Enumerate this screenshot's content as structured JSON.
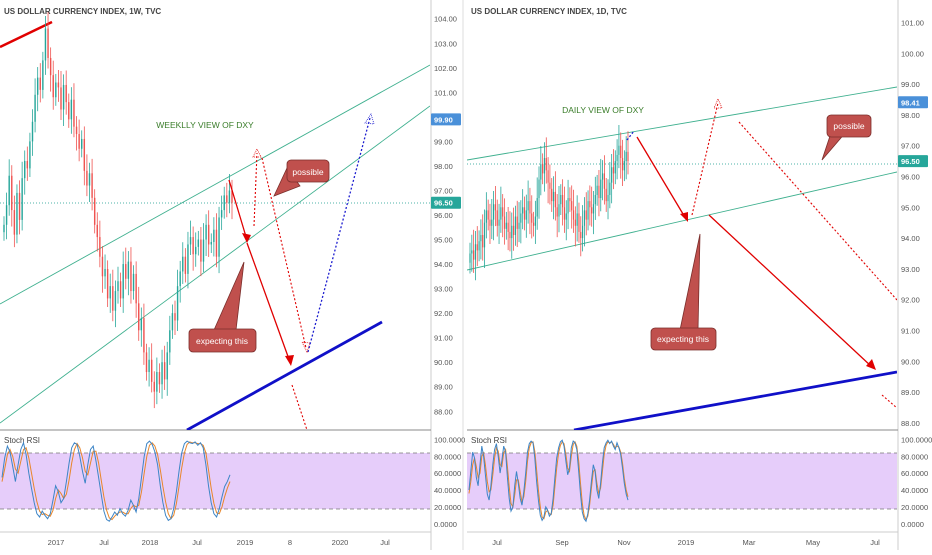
{
  "colors": {
    "up": "#26a69a",
    "down": "#ef5350",
    "channel": "#3fb08f",
    "baseline": "#4fb3a8",
    "arrow_red": "#e00000",
    "arrow_blue": "#1f1fd0",
    "support_blue": "#1010c8",
    "callout_fill": "#c0504d",
    "callout_stroke": "#7a2e2b",
    "stoch_band": "#e6cdfa",
    "stoch_k": "#3d85c6",
    "stoch_d": "#e8862a",
    "label_text": "#3a7d2a",
    "price_tag_bg": "#26a69a",
    "target_tag_bg": "#4a90d9",
    "axis_text": "#555555",
    "divider": "#888888"
  },
  "chart_data": [
    {
      "type": "candlestick",
      "title": "US DOLLAR CURRENCY INDEX, 1W, TVC",
      "annotation": "WEEKLLY VIEW OF DXY",
      "x_ticks": [
        "2017",
        "Jul",
        "2018",
        "Jul",
        "2019",
        "8",
        "2020",
        "Jul"
      ],
      "y_ticks": [
        "104.00",
        "103.00",
        "102.00",
        "101.00",
        "100.00",
        "99.00",
        "98.00",
        "97.00",
        "96.00",
        "95.00",
        "94.00",
        "93.00",
        "92.00",
        "91.00",
        "90.00",
        "89.00",
        "88.00"
      ],
      "ylim": [
        87.4,
        104.6
      ],
      "price_tags": [
        {
          "text": "99.90",
          "value": 99.9
        },
        {
          "text": "96.50",
          "value": 96.5
        }
      ],
      "current_price": 96.5,
      "closes": [
        95.6,
        96.4,
        97.6,
        96.2,
        95.2,
        96.9,
        95.8,
        97.5,
        98.2,
        97.9,
        99.0,
        99.8,
        100.9,
        101.6,
        101.1,
        102.3,
        103.6,
        102.4,
        101.7,
        100.8,
        101.4,
        101.2,
        100.3,
        101.3,
        100.6,
        99.9,
        100.7,
        99.6,
        99.3,
        98.7,
        99.1,
        97.8,
        97.2,
        97.7,
        96.7,
        95.6,
        95.1,
        94.3,
        93.5,
        93.8,
        92.6,
        93.1,
        92.1,
        92.9,
        93.3,
        92.6,
        94.0,
        93.4,
        94.1,
        92.9,
        93.6,
        92.4,
        91.3,
        91.8,
        90.4,
        89.6,
        90.1,
        89.2,
        88.8,
        89.6,
        89.1,
        90.0,
        89.3,
        90.4,
        91.3,
        92.0,
        91.7,
        93.1,
        93.7,
        94.3,
        93.6,
        94.8,
        95.1,
        94.4,
        94.7,
        95.0,
        94.1,
        95.0,
        95.6,
        94.8,
        94.9,
        95.4,
        94.3,
        95.9,
        96.2,
        96.8,
        96.5,
        97.0,
        96.5
      ]
    },
    {
      "type": "candlestick",
      "title": "US DOLLAR CURRENCY INDEX, 1D, TVC",
      "annotation": "DAILY VIEW OF DXY",
      "x_ticks": [
        "Jul",
        "Sep",
        "Nov",
        "2019",
        "Mar",
        "May",
        "Jul"
      ],
      "y_ticks": [
        "101.00",
        "100.00",
        "99.00",
        "98.00",
        "97.00",
        "96.00",
        "95.00",
        "94.00",
        "93.00",
        "92.00",
        "91.00",
        "90.00",
        "89.00",
        "88.00"
      ],
      "ylim": [
        87.9,
        101.6
      ],
      "price_tags": [
        {
          "text": "98.41",
          "value": 98.41
        },
        {
          "text": "96.50",
          "value": 96.5
        }
      ],
      "current_price": 96.5,
      "closes": [
        93.5,
        93.6,
        93.3,
        93.8,
        93.6,
        93.9,
        94.1,
        93.7,
        94.5,
        94.9,
        94.6,
        94.4,
        94.6,
        95.1,
        94.9,
        94.4,
        94.6,
        95.0,
        94.7,
        94.3,
        94.5,
        94.2,
        94.0,
        94.4,
        94.1,
        94.7,
        94.3,
        94.5,
        94.8,
        95.0,
        94.6,
        94.9,
        95.2,
        94.8,
        94.5,
        94.4,
        94.7,
        95.3,
        95.9,
        96.4,
        96.1,
        96.6,
        96.2,
        95.8,
        95.6,
        95.2,
        95.5,
        95.0,
        94.7,
        95.1,
        95.4,
        95.0,
        94.6,
        94.8,
        95.3,
        95.2,
        94.9,
        94.6,
        94.4,
        94.8,
        94.2,
        94.0,
        94.4,
        94.9,
        94.6,
        95.2,
        95.0,
        94.8,
        95.1,
        95.4,
        95.7,
        95.3,
        95.9,
        96.1,
        95.6,
        95.2,
        95.4,
        95.8,
        96.3,
        96.1,
        96.5,
        96.7,
        97.0,
        96.6,
        96.2,
        96.5,
        96.8,
        96.5
      ]
    },
    {
      "type": "line",
      "title": "Stoch RSI",
      "y_ticks": [
        "100.0000",
        "80.0000",
        "60.0000",
        "40.0000",
        "20.0000",
        "0.0000"
      ],
      "ylim": [
        -5,
        104
      ],
      "band": [
        20,
        80
      ],
      "series": [
        {
          "values": [
            55,
            78,
            92,
            85,
            68,
            50,
            70,
            88,
            96,
            82,
            60,
            42,
            25,
            12,
            8,
            15,
            10,
            6,
            12,
            28,
            45,
            38,
            25,
            30,
            50,
            72,
            90,
            96,
            94,
            80,
            62,
            48,
            70,
            88,
            92,
            75,
            55,
            35,
            15,
            5,
            3,
            8,
            14,
            10,
            18,
            12,
            9,
            16,
            28,
            22,
            14,
            30,
            55,
            80,
            95,
            98,
            94,
            85,
            70,
            45,
            25,
            10,
            4,
            6,
            18,
            38,
            62,
            84,
            95,
            98,
            96,
            95,
            97,
            93,
            96,
            90,
            70,
            45,
            25,
            12,
            8,
            18,
            32,
            44,
            50,
            58
          ]
        },
        {
          "values": [
            50,
            65,
            82,
            88,
            80,
            65,
            60,
            74,
            88,
            90,
            78,
            60,
            42,
            26,
            15,
            11,
            12,
            10,
            9,
            16,
            30,
            40,
            36,
            30,
            35,
            52,
            72,
            88,
            95,
            90,
            78,
            62,
            58,
            72,
            86,
            86,
            72,
            52,
            32,
            16,
            7,
            5,
            9,
            12,
            14,
            14,
            12,
            12,
            18,
            22,
            20,
            22,
            38,
            60,
            80,
            93,
            96,
            92,
            82,
            64,
            44,
            26,
            12,
            6,
            10,
            24,
            44,
            66,
            84,
            94,
            97,
            96,
            96,
            95,
            95,
            93,
            84,
            64,
            42,
            24,
            13,
            12,
            20,
            32,
            42,
            50
          ]
        },
        {
          "values": [
            40,
            62,
            85,
            78,
            55,
            45,
            70,
            92,
            80,
            58,
            35,
            28,
            45,
            70,
            88,
            95,
            80,
            60,
            75,
            92,
            85,
            55,
            30,
            15,
            20,
            45,
            62,
            48,
            30,
            22,
            38,
            60,
            85,
            95,
            98,
            96,
            78,
            50,
            28,
            10,
            4,
            8,
            20,
            16,
            9,
            12,
            30,
            55,
            78,
            90,
            97,
            99,
            92,
            74,
            58,
            66,
            90,
            98,
            96,
            88,
            62,
            35,
            14,
            6,
            3,
            12,
            28,
            50,
            70,
            62,
            40,
            30,
            48,
            72,
            90,
            96,
            99,
            95,
            98,
            92,
            88,
            96,
            90,
            82,
            66,
            48,
            35,
            28
          ]
        },
        {
          "values": [
            36,
            50,
            70,
            78,
            68,
            55,
            60,
            80,
            84,
            70,
            50,
            38,
            40,
            58,
            78,
            90,
            86,
            70,
            68,
            84,
            88,
            68,
            44,
            24,
            20,
            34,
            52,
            52,
            38,
            26,
            32,
            50,
            74,
            90,
            96,
            97,
            86,
            64,
            40,
            20,
            8,
            6,
            14,
            16,
            12,
            11,
            22,
            44,
            66,
            84,
            93,
            97,
            95,
            82,
            66,
            62,
            80,
            94,
            97,
            92,
            74,
            48,
            24,
            10,
            5,
            9,
            22,
            42,
            62,
            64,
            48,
            36,
            42,
            62,
            82,
            93,
            97,
            96,
            97,
            94,
            90,
            92,
            91,
            85,
            72,
            54,
            40,
            32
          ]
        }
      ]
    }
  ],
  "callouts": {
    "weekly_possible": "possible",
    "weekly_expecting": "expecting this",
    "daily_possible": "possible",
    "daily_expecting": "expecting this"
  }
}
